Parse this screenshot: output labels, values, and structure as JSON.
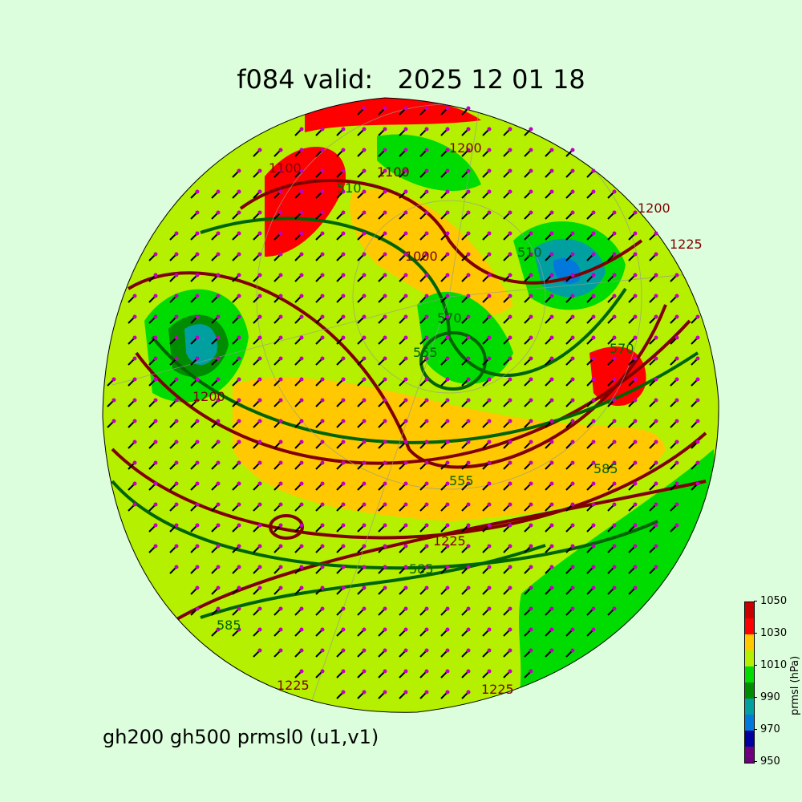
{
  "title": "f084 valid:   2025 12 01 18",
  "subtitle": "gh200 gh500 prmsl0 (u1,v1)",
  "colorbar": {
    "label": "prmsl (hPa)",
    "ticks": [
      "950",
      "970",
      "990",
      "1010",
      "1030",
      "1050"
    ],
    "levels": [
      950,
      960,
      970,
      980,
      990,
      1000,
      1010,
      1020,
      1030,
      1040,
      1050
    ],
    "colors": [
      "#6e007e",
      "#0000a0",
      "#0078dc",
      "#00a0a0",
      "#008c00",
      "#00dc00",
      "#b4f000",
      "#ffc800",
      "#ff0000",
      "#c80000"
    ]
  },
  "contour_colors": {
    "gh200": "#800000",
    "gh500": "#006400",
    "wind_barbs": "#000000",
    "wind_dots": "#c000c0"
  },
  "contour_labels": {
    "gh200": [
      "1200",
      "1100",
      "1000",
      "1100",
      "1200",
      "1225",
      "1225",
      "1200",
      "1225",
      "1225"
    ],
    "gh500": [
      "510",
      "555",
      "510",
      "570",
      "585",
      "555",
      "585",
      "585",
      "570"
    ]
  }
}
